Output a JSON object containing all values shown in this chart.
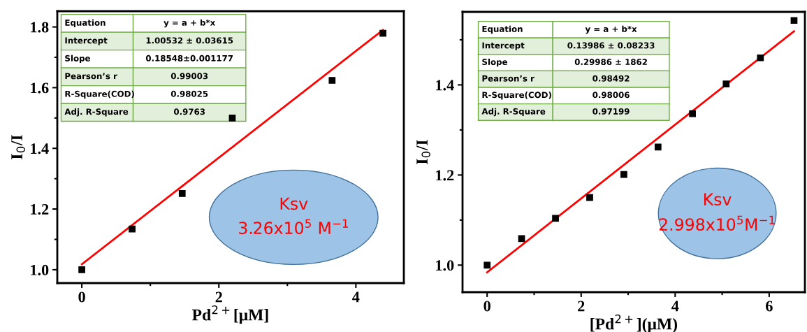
{
  "chart_data": [
    {
      "type": "scatter",
      "xlabel": "Pd$^{2+}$[μM]",
      "ylabel": "I$_{0}$/I",
      "xlim": [
        -0.358,
        4.7
      ],
      "ylim": [
        0.956,
        1.852
      ],
      "xticks": [
        0,
        2,
        4
      ],
      "yticks": [
        {
          "value": 1.0,
          "label": "1.0"
        },
        1.2,
        1.4,
        1.6,
        1.8
      ],
      "grid": false,
      "marker": "square",
      "series": [
        {
          "color": "#000000",
          "x": [
            0,
            0.734,
            1.465,
            2.196,
            3.653,
            4.395
          ],
          "values": [
            1.0,
            1.134,
            1.251,
            1.5,
            1.624,
            1.779
          ]
        },
        {
          "type": "line",
          "color": "#ff0000",
          "marker": "none",
          "x": [
            0,
            4.395
          ],
          "values": [
            1.018,
            1.79
          ]
        }
      ],
      "annotations": [
        "Equation",
        "y = a + b*x",
        "Intercept",
        "1.00532 ± 0.03615",
        "Slope",
        "0.18548±0.001177",
        "Pearson’s r",
        "0.99003",
        "R-Square(COD)",
        "0.98025",
        "Adj. R-Square",
        "0.9763",
        "Ksv",
        "3.26x10$^{5}$ M$^{−1}$"
      ]
    },
    {
      "type": "scatter",
      "xlabel": "[Pd$^{2+}$](μM)",
      "ylabel": "I$_{0}$/I",
      "xlim": [
        -0.523,
        6.76
      ],
      "ylim": [
        0.94,
        1.562
      ],
      "xticks": [
        0,
        2,
        4,
        6
      ],
      "yticks": [
        {
          "value": 1.0,
          "label": "1.0"
        },
        1.2,
        1.4
      ],
      "grid": false,
      "marker": "square",
      "series": [
        {
          "color": "#000000",
          "x": [
            0,
            0.733,
            1.455,
            2.182,
            2.909,
            3.636,
            4.369,
            5.085,
            5.813,
            6.529
          ],
          "values": [
            1.0,
            1.059,
            1.104,
            1.15,
            1.201,
            1.262,
            1.336,
            1.402,
            1.46,
            1.543
          ]
        },
        {
          "type": "line",
          "color": "#ff0000",
          "marker": "none",
          "x": [
            0,
            6.529
          ],
          "values": [
            0.984,
            1.519
          ]
        }
      ],
      "annotations": [
        "Equation",
        "y = a + b*x",
        "Intercept",
        "0.13986 ± 0.08233",
        "Slope",
        "0.29986 ± 1862",
        "Pearson’s r",
        "0.98492",
        "R-Square(COD)",
        "0.98006",
        "Adj. R-Square",
        "0.97199",
        "Ksv",
        "2.998x10$^{5}$M$^{−1}$"
      ]
    }
  ]
}
